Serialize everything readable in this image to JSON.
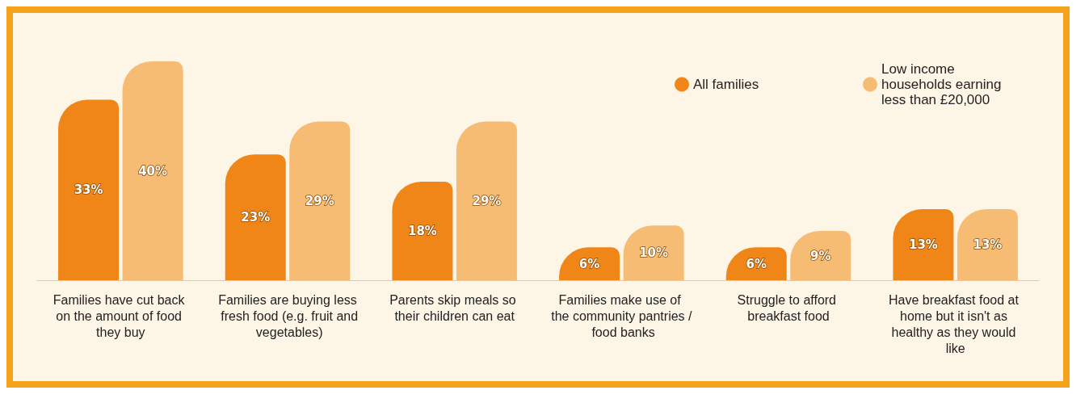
{
  "chart_data": {
    "type": "bar",
    "categories": [
      "Families have cut back on the amount of food they buy",
      "Families are buying less fresh food (e.g. fruit and vegetables)",
      "Parents skip meals so their children can eat",
      "Families make use of the community pantries / food banks",
      "Struggle to afford breakfast food",
      "Have breakfast food at home but it isn't as healthy as they would like"
    ],
    "series": [
      {
        "name": "All families",
        "color": "#f08518",
        "values": [
          33,
          23,
          18,
          6,
          6,
          13
        ],
        "value_labels": [
          "33%",
          "23%",
          "18%",
          "6%",
          "6%",
          "13%"
        ]
      },
      {
        "name": "Low income households earning less than £20,000",
        "color": "#f7bc74",
        "values": [
          40,
          29,
          29,
          10,
          9,
          13
        ],
        "value_labels": [
          "40%",
          "29%",
          "29%",
          "10%",
          "9%",
          "13%"
        ]
      }
    ],
    "legend": "top right"
  }
}
